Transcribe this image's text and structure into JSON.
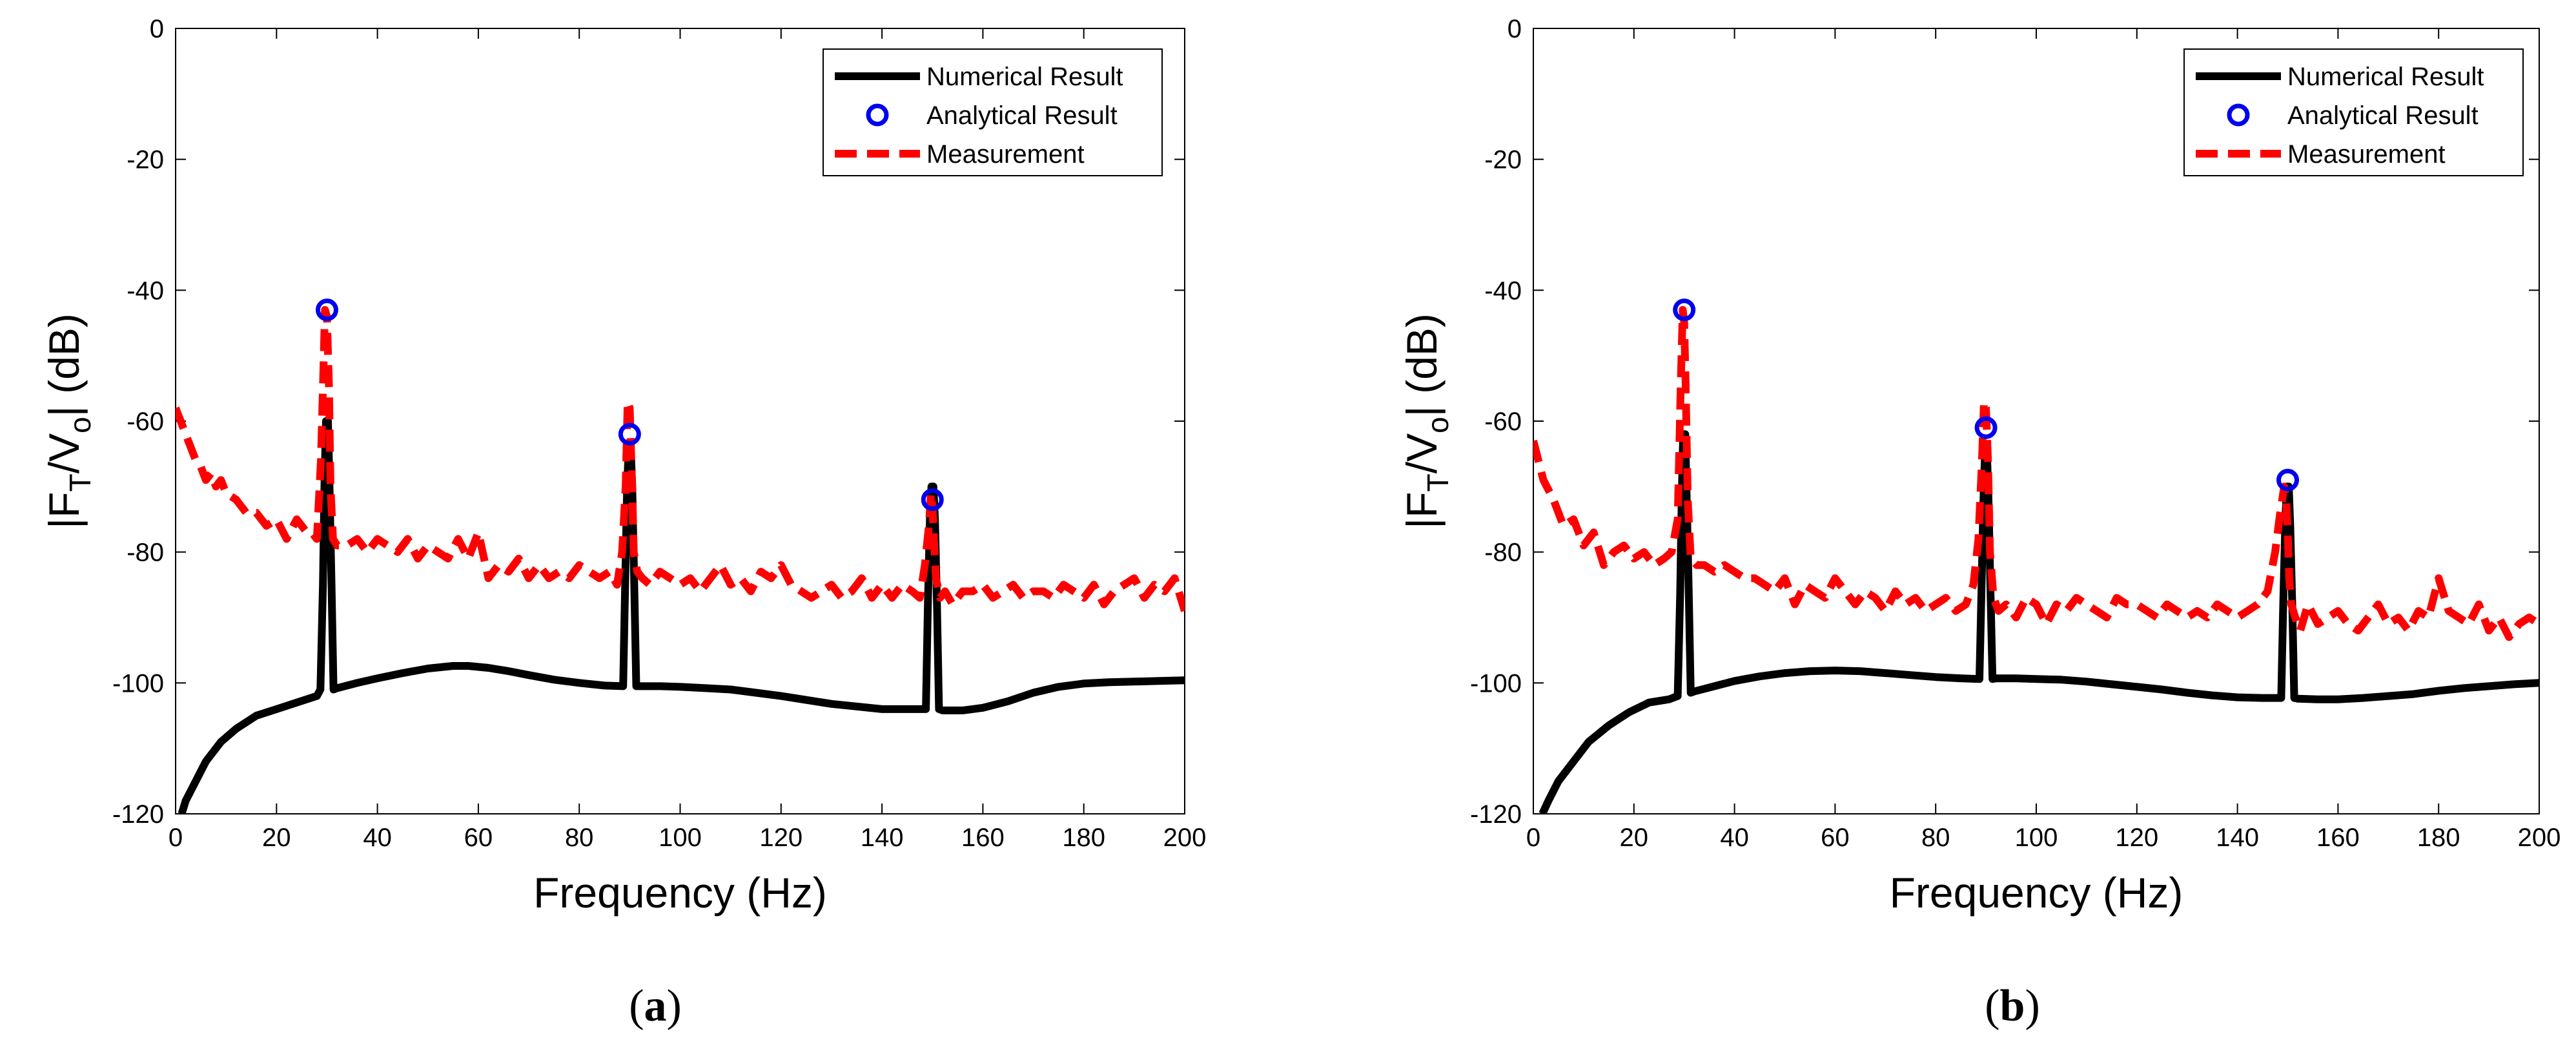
{
  "chart_data": [
    {
      "type": "line",
      "panel_label": "a",
      "xlabel": "Frequency (Hz)",
      "ylabel": {
        "pre": "|F",
        "sub1": "T",
        "mid": "/V",
        "sub2": "o",
        "post": "| (dB)"
      },
      "xlim": [
        0,
        200
      ],
      "ylim": [
        -120,
        0
      ],
      "xticks": [
        0,
        20,
        40,
        60,
        80,
        100,
        120,
        140,
        160,
        180,
        200
      ],
      "yticks": [
        0,
        -20,
        -40,
        -60,
        -80,
        -100,
        -120
      ],
      "legend": {
        "position": "top-right",
        "entries": [
          "Numerical Result",
          "Analytical Result",
          "Measurement"
        ]
      },
      "series": [
        {
          "name": "Numerical Result",
          "style": "solid",
          "color": "#000000",
          "x": [
            1.2,
            2,
            4,
            6,
            9,
            12,
            16,
            20,
            24,
            28,
            28.7,
            29.2,
            29.5,
            29.8,
            30.2,
            30.5,
            30.9,
            31.3,
            32,
            36,
            40,
            45,
            50,
            55,
            58,
            62,
            66,
            70,
            75,
            80,
            85,
            88.7,
            89.1,
            89.5,
            89.8,
            90.2,
            90.5,
            90.9,
            91.3,
            92,
            96,
            100,
            105,
            110,
            115,
            120,
            125,
            130,
            135,
            140,
            145,
            148.7,
            149.1,
            149.5,
            149.8,
            150.2,
            150.5,
            150.9,
            151.3,
            152,
            156,
            160,
            165,
            170,
            175,
            180,
            185,
            190,
            195,
            200
          ],
          "y": [
            -120,
            -118,
            -115,
            -112,
            -109,
            -107,
            -105,
            -104,
            -103,
            -102,
            -101,
            -85,
            -70,
            -60,
            -60,
            -70,
            -85,
            -101,
            -100.8,
            -100,
            -99.3,
            -98.5,
            -97.8,
            -97.4,
            -97.4,
            -97.7,
            -98.2,
            -98.8,
            -99.5,
            -100,
            -100.4,
            -100.5,
            -85,
            -70,
            -64,
            -64,
            -70,
            -85,
            -100.5,
            -100.5,
            -100.5,
            -100.6,
            -100.8,
            -101,
            -101.5,
            -102,
            -102.6,
            -103.2,
            -103.6,
            -104,
            -104,
            -104,
            -88,
            -75,
            -70,
            -70,
            -75,
            -88,
            -104,
            -104.2,
            -104.2,
            -103.8,
            -102.8,
            -101.5,
            -100.6,
            -100.1,
            -99.9,
            -99.8,
            -99.7,
            -99.6
          ]
        },
        {
          "name": "Analytical Result",
          "style": "circles",
          "color": "#0000ee",
          "x": [
            30,
            90,
            150
          ],
          "y": [
            -43,
            -62,
            -72
          ]
        },
        {
          "name": "Measurement",
          "style": "dashed",
          "color": "#ff0000",
          "x": [
            0,
            2,
            4,
            5,
            6,
            7,
            8,
            9,
            10,
            12,
            14,
            16,
            18,
            20,
            22,
            24,
            26,
            27,
            28,
            28.8,
            29.3,
            29.6,
            30,
            30.4,
            30.7,
            31.2,
            32,
            34,
            36,
            38,
            40,
            42,
            44,
            46,
            48,
            50,
            52,
            54,
            56,
            58,
            60,
            62,
            64,
            66,
            68,
            70,
            72,
            74,
            76,
            78,
            80,
            82,
            84,
            86,
            87.5,
            88.5,
            89.2,
            89.6,
            90,
            90.4,
            90.8,
            91.5,
            92.5,
            94,
            96,
            98,
            100,
            102,
            104,
            106,
            108,
            110,
            112,
            114,
            116,
            118,
            120,
            122,
            124,
            126,
            128,
            130,
            132,
            134,
            136,
            138,
            140,
            142,
            144,
            146,
            147.5,
            148.5,
            149.3,
            149.7,
            150,
            150.3,
            150.7,
            151.5,
            152.5,
            154,
            156,
            158,
            160,
            162,
            164,
            166,
            168,
            170,
            172,
            174,
            176,
            178,
            180,
            182,
            184,
            186,
            188,
            190,
            192,
            194,
            196,
            198,
            200
          ],
          "y": [
            -58,
            -62,
            -66,
            -67,
            -69,
            -68,
            -70,
            -69,
            -71,
            -72,
            -74,
            -74,
            -76,
            -75,
            -78,
            -75,
            -77,
            -77,
            -78,
            -66,
            -52,
            -43,
            -44,
            -55,
            -70,
            -78,
            -79,
            -79,
            -78,
            -80,
            -78,
            -79,
            -80,
            -78,
            -81,
            -79,
            -80,
            -81,
            -78,
            -81,
            -77,
            -84,
            -82,
            -83,
            -81,
            -84,
            -82,
            -84,
            -83,
            -84,
            -82,
            -83,
            -84,
            -83,
            -85,
            -80,
            -70,
            -57,
            -58,
            -68,
            -80,
            -83,
            -84,
            -85,
            -83,
            -84,
            -85,
            -84,
            -86,
            -84,
            -82,
            -85,
            -84,
            -86,
            -83,
            -84,
            -82,
            -85,
            -86,
            -87,
            -86,
            -85,
            -87,
            -86,
            -84,
            -87,
            -85,
            -87,
            -85,
            -86,
            -87,
            -82,
            -76,
            -71,
            -73,
            -78,
            -84,
            -87,
            -86,
            -88,
            -86,
            -86,
            -85,
            -87,
            -86,
            -85,
            -87,
            -86,
            -86,
            -87,
            -85,
            -86,
            -87,
            -85,
            -88,
            -86,
            -85,
            -84,
            -87,
            -85,
            -86,
            -84,
            -89
          ]
        }
      ]
    },
    {
      "type": "line",
      "panel_label": "b",
      "xlabel": "Frequency (Hz)",
      "ylabel": {
        "pre": "|F",
        "sub1": "T",
        "mid": "/V",
        "sub2": "o",
        "post": "| (dB)"
      },
      "xlim": [
        0,
        200
      ],
      "ylim": [
        -120,
        0
      ],
      "xticks": [
        0,
        20,
        40,
        60,
        80,
        100,
        120,
        140,
        160,
        180,
        200
      ],
      "yticks": [
        0,
        -20,
        -40,
        -60,
        -80,
        -100,
        -120
      ],
      "legend": {
        "position": "top-right",
        "entries": [
          "Numerical Result",
          "Analytical Result",
          "Measurement"
        ]
      },
      "series": [
        {
          "name": "Numerical Result",
          "style": "solid",
          "color": "#000000",
          "x": [
            1.8,
            3,
            5,
            8,
            11,
            15,
            19,
            23,
            27,
            28.7,
            29.2,
            29.5,
            29.8,
            30.2,
            30.5,
            30.9,
            31.3,
            32,
            36,
            40,
            45,
            50,
            55,
            60,
            65,
            70,
            75,
            80,
            85,
            88.7,
            89.1,
            89.5,
            89.8,
            90.2,
            90.5,
            90.9,
            91.3,
            92,
            96,
            100,
            105,
            110,
            115,
            120,
            125,
            130,
            135,
            140,
            145,
            148.7,
            149.1,
            149.5,
            149.8,
            150.2,
            150.5,
            150.9,
            151.3,
            152,
            156,
            160,
            165,
            170,
            175,
            180,
            185,
            190,
            195,
            200
          ],
          "y": [
            -120,
            -118,
            -115,
            -112,
            -109,
            -106.5,
            -104.5,
            -103,
            -102.5,
            -102,
            -86,
            -72,
            -62,
            -62,
            -72,
            -86,
            -101.5,
            -101.3,
            -100.5,
            -99.7,
            -99,
            -98.5,
            -98.2,
            -98.1,
            -98.2,
            -98.5,
            -98.8,
            -99.1,
            -99.3,
            -99.4,
            -86,
            -72,
            -65,
            -65,
            -72,
            -86,
            -99.4,
            -99.3,
            -99.3,
            -99.4,
            -99.5,
            -99.8,
            -100.2,
            -100.6,
            -101,
            -101.5,
            -101.9,
            -102.2,
            -102.3,
            -102.3,
            -88,
            -76,
            -70,
            -70,
            -76,
            -88,
            -102.3,
            -102.4,
            -102.5,
            -102.5,
            -102.3,
            -102,
            -101.7,
            -101.2,
            -100.8,
            -100.5,
            -100.2,
            -100
          ]
        },
        {
          "name": "Analytical Result",
          "style": "circles",
          "color": "#0000ee",
          "x": [
            30,
            90,
            150
          ],
          "y": [
            -43,
            -61,
            -69
          ]
        },
        {
          "name": "Measurement",
          "style": "dashed",
          "color": "#ff0000",
          "x": [
            0,
            2,
            4,
            6,
            8,
            10,
            12,
            14,
            16,
            18,
            20,
            22,
            24,
            26,
            27.5,
            28.7,
            29.3,
            29.7,
            30,
            30.3,
            30.7,
            31.3,
            32.5,
            34,
            36,
            38,
            40,
            42,
            44,
            46,
            48,
            50,
            52,
            54,
            56,
            58,
            60,
            62,
            64,
            66,
            68,
            70,
            72,
            74,
            76,
            78,
            80,
            82,
            84,
            86,
            87.5,
            88.5,
            89.2,
            89.6,
            90,
            90.4,
            90.8,
            91.5,
            92.5,
            94,
            96,
            98,
            100,
            102,
            104,
            106,
            108,
            110,
            112,
            114,
            116,
            118,
            120,
            122,
            124,
            126,
            128,
            130,
            132,
            134,
            136,
            138,
            140,
            142,
            144,
            146,
            147.5,
            148.5,
            149.3,
            149.7,
            150,
            150.3,
            150.7,
            151.5,
            152.5,
            154,
            156,
            158,
            160,
            162,
            164,
            166,
            168,
            170,
            172,
            174,
            176,
            178,
            180,
            182,
            184,
            186,
            188,
            190,
            192,
            194,
            196,
            198,
            200
          ],
          "y": [
            -63,
            -69,
            -72,
            -76,
            -75,
            -79,
            -77,
            -82,
            -80,
            -79,
            -81,
            -80,
            -82,
            -81,
            -80,
            -75,
            -55,
            -43,
            -45,
            -55,
            -72,
            -81,
            -82,
            -82,
            -83,
            -82,
            -83,
            -84,
            -84,
            -85,
            -86,
            -84,
            -88,
            -85,
            -86,
            -87,
            -84,
            -86,
            -88,
            -86,
            -87,
            -89,
            -86,
            -88,
            -87,
            -89,
            -88,
            -87,
            -89,
            -88,
            -85,
            -78,
            -66,
            -57,
            -58,
            -66,
            -80,
            -87,
            -89,
            -88,
            -90,
            -87,
            -88,
            -91,
            -88,
            -89,
            -87,
            -88,
            -89,
            -90,
            -87,
            -88,
            -88,
            -89,
            -90,
            -88,
            -89,
            -90,
            -89,
            -90,
            -88,
            -89,
            -90,
            -89,
            -88,
            -86,
            -80,
            -74,
            -70,
            -72,
            -77,
            -84,
            -88,
            -90,
            -92,
            -88,
            -91,
            -90,
            -89,
            -91,
            -92,
            -90,
            -88,
            -91,
            -90,
            -92,
            -89,
            -90,
            -84,
            -89,
            -90,
            -91,
            -88,
            -92,
            -90,
            -93,
            -91,
            -90,
            -91
          ]
        }
      ]
    }
  ]
}
